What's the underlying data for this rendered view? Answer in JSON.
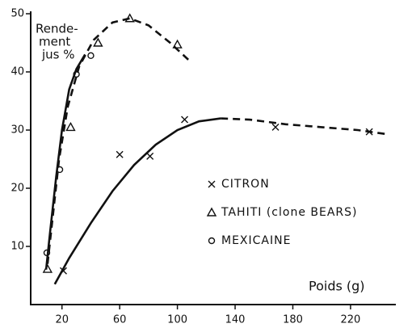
{
  "chart_data": {
    "type": "scatter",
    "xlabel": "Poids (g)",
    "ylabel": [
      "Rende-",
      "ment",
      "jus %"
    ],
    "xlim": [
      0,
      250
    ],
    "ylim": [
      0,
      50
    ],
    "xticks": [
      20,
      60,
      100,
      140,
      180,
      220
    ],
    "yticks": [
      10,
      20,
      30,
      40,
      50
    ],
    "series": [
      {
        "name": "CITRON",
        "marker": "x",
        "color": "#111111",
        "x": [
          21,
          60,
          81,
          105,
          168,
          233
        ],
        "values": [
          5.8,
          25.8,
          25.5,
          31.8,
          30.5,
          29.7
        ],
        "fits": [
          {
            "x": [
              15,
              25,
              40,
              55,
              70,
              85,
              100,
              115,
              130
            ],
            "y": [
              3.5,
              8,
              14,
              19.5,
              24,
              27.5,
              30,
              31.5,
              32
            ],
            "dashed": false
          },
          {
            "x": [
              130,
              150,
              175,
              200,
              225,
              245
            ],
            "y": [
              32,
              31.8,
              31,
              30.5,
              30,
              29.3
            ],
            "dashed": true
          }
        ]
      },
      {
        "name": "TAHITI (clone BEARS)",
        "marker": "triangle",
        "color": "#111111",
        "x": [
          10,
          26,
          45,
          67,
          100
        ],
        "values": [
          6.1,
          30.5,
          45,
          49.2,
          44.7
        ],
        "fits": [
          {
            "x": [
              10,
              14,
              18,
              24,
              32,
              42,
              55,
              67,
              80,
              95,
              108
            ],
            "y": [
              7,
              16,
              25,
              34,
              41,
              45.5,
              48.5,
              49.2,
              48,
              45,
              42
            ],
            "dashed": true
          }
        ]
      },
      {
        "name": "MEXICAINE",
        "marker": "circle",
        "color": "#111111",
        "x": [
          9.5,
          18.5,
          30,
          40
        ],
        "values": [
          8.9,
          23.2,
          39.6,
          42.8
        ],
        "fits": [
          {
            "x": [
              9,
              12,
              16,
              20,
              25,
              30,
              36
            ],
            "y": [
              6,
              13,
              22,
              30,
              37,
              40.5,
              43
            ],
            "dashed": false
          }
        ]
      }
    ]
  }
}
